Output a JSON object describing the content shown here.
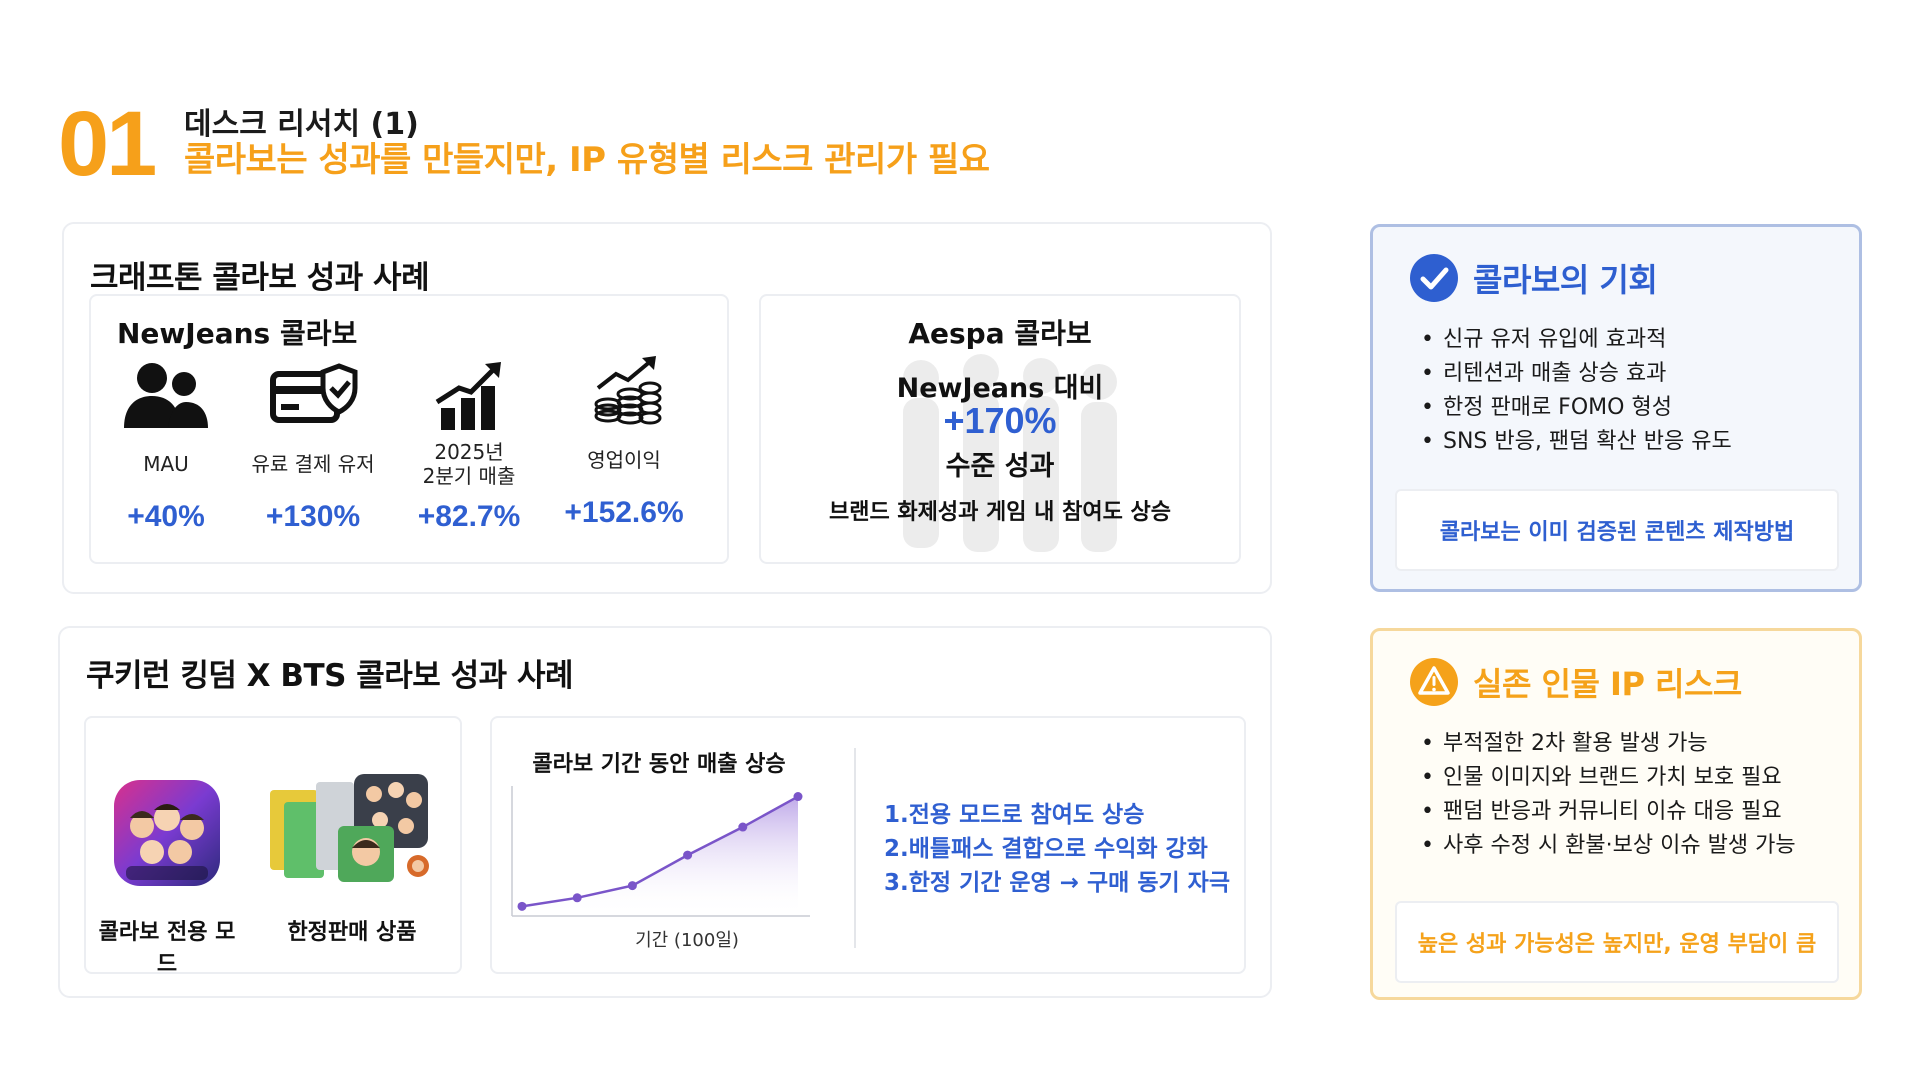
{
  "header": {
    "number": "01",
    "subtitle": "데스크 리서치 (1)",
    "title": "콜라보는 성과를 만들지만, IP 유형별 리스크 관리가 필요"
  },
  "craftons": {
    "title": "크래프톤 콜라보 성과 사례",
    "newjeans": {
      "title": "NewJeans 콜라보",
      "stats": [
        {
          "icon": "users-icon",
          "label": "MAU",
          "value": "+40%"
        },
        {
          "icon": "payment-card-icon",
          "label": "유료 결제 유저",
          "value": "+130%"
        },
        {
          "icon": "growth-bars-icon",
          "label": "2025년\n2분기 매출",
          "value": "+82.7%"
        },
        {
          "icon": "coins-growth-icon",
          "label": "영업이익",
          "value": "+152.6%"
        }
      ]
    },
    "aespa": {
      "title": "Aespa 콜라보",
      "line1": "NewJeans 대비",
      "big": "+170%",
      "line3": "수준 성과",
      "line4": "브랜드 화제성과 게임 내 참여도 상승"
    }
  },
  "cookierun": {
    "title": "쿠키런 킹덤 X BTS 콜라보 성과 사례",
    "items": [
      {
        "label": "콜라보 전용 모드"
      },
      {
        "label": "한정판매 상품"
      }
    ],
    "effects": [
      "1.전용 모드로 참여도 상승",
      "2.배틀패스 결합으로 수익화 강화",
      "3.한정 기간 운영 → 구매 동기 자극"
    ]
  },
  "chart_data": {
    "type": "area",
    "title": "콜라보 기간 동안 매출 상승",
    "xlabel": "기간 (100일)",
    "ylabel": "",
    "x": [
      0,
      1,
      2,
      3,
      4,
      5
    ],
    "values": [
      3,
      10,
      20,
      45,
      68,
      93
    ],
    "ylim": [
      0,
      100
    ],
    "grid": false,
    "color": "#7a55c9"
  },
  "opportunity": {
    "title": "콜라보의 기회",
    "icon": "check-circle-icon",
    "items": [
      "신규 유저 유입에 효과적",
      "리텐션과 매출 상승 효과",
      "한정 판매로 FOMO 형성",
      "SNS 반응, 팬덤 확산 반응 유도"
    ],
    "footer": "콜라보는 이미 검증된 콘텐츠 제작방법"
  },
  "risk": {
    "title": "실존 인물 IP 리스크",
    "icon": "warning-circle-icon",
    "items": [
      "부적절한 2차 활용 발생 가능",
      "인물 이미지와 브랜드 가치 보호 필요",
      "팬덤 반응과 커뮤니티 이슈 대응 필요",
      "사후 수정 시 환불·보상 이슈 발생 가능"
    ],
    "footer": "높은 성과 가능성은 높지만, 운영 부담이 큼"
  },
  "colors": {
    "accent_orange": "#f6a01a",
    "accent_blue": "#2f5fd1",
    "chart_purple": "#7a55c9"
  }
}
